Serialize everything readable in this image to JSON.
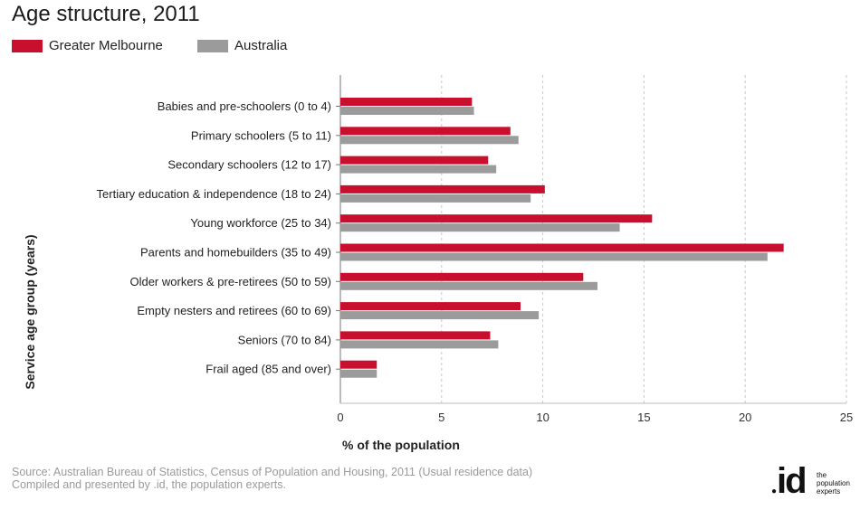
{
  "title": "Age structure, 2011",
  "legend": [
    {
      "label": "Greater Melbourne",
      "color": "#c8102e"
    },
    {
      "label": "Australia",
      "color": "#9b9b9b"
    }
  ],
  "chart_data": {
    "type": "bar",
    "orientation": "horizontal",
    "categories": [
      "Babies and pre-schoolers (0 to 4)",
      "Primary schoolers (5 to 11)",
      "Secondary schoolers (12 to 17)",
      "Tertiary education & independence (18 to 24)",
      "Young workforce (25 to 34)",
      "Parents and homebuilders (35 to 49)",
      "Older workers & pre-retirees (50 to 59)",
      "Empty nesters and retirees (60 to 69)",
      "Seniors (70 to 84)",
      "Frail aged (85 and over)"
    ],
    "series": [
      {
        "name": "Greater Melbourne",
        "color": "#c8102e",
        "values": [
          6.5,
          8.4,
          7.3,
          10.1,
          15.4,
          21.9,
          12.0,
          8.9,
          7.4,
          1.8
        ]
      },
      {
        "name": "Australia",
        "color": "#9b9b9b",
        "values": [
          6.6,
          8.8,
          7.7,
          9.4,
          13.8,
          21.1,
          12.7,
          9.8,
          7.8,
          1.8
        ]
      }
    ],
    "xlabel": "% of the population",
    "ylabel": "Service age group (years)",
    "xlim": [
      0,
      25
    ],
    "xticks": [
      0,
      5,
      10,
      15,
      20,
      25
    ],
    "grid": "vertical-dashed",
    "legend_position": "top-left"
  },
  "footer": {
    "source_line1": "Source: Australian Bureau of Statistics, Census of Population and Housing, 2011 (Usual residence data)",
    "source_line2": "Compiled and presented by .id, the population experts."
  },
  "logo": {
    "dot": "●",
    "mark": "id",
    "tagline_1": "the",
    "tagline_2": "population",
    "tagline_3": "experts"
  }
}
